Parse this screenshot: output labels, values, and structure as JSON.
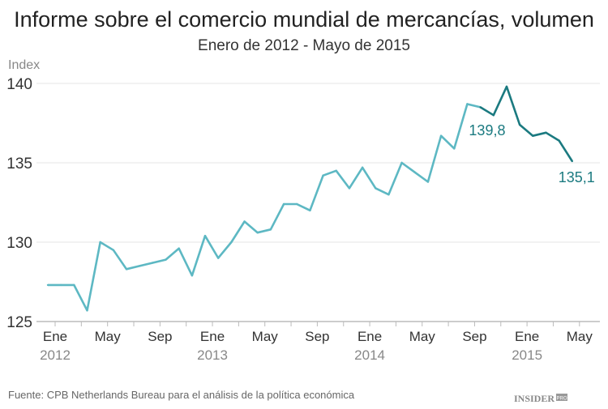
{
  "chart_data": {
    "type": "line",
    "title": "Informe sobre el comercio mundial de mercancías, volumen",
    "subtitle": "Enero de 2012 - Mayo de 2015",
    "ylabel": "Index",
    "xlabel": "",
    "ylim": [
      125,
      140
    ],
    "yticks": [
      "125",
      "130",
      "135",
      "140"
    ],
    "ytick_values": [
      125,
      130,
      135,
      140
    ],
    "grid": true,
    "xtick_labels": [
      {
        "month": 0,
        "label": "Ene",
        "year": "2012"
      },
      {
        "month": 4,
        "label": "May",
        "year": ""
      },
      {
        "month": 8,
        "label": "Sep",
        "year": ""
      },
      {
        "month": 12,
        "label": "Ene",
        "year": "2013"
      },
      {
        "month": 16,
        "label": "May",
        "year": ""
      },
      {
        "month": 20,
        "label": "Sep",
        "year": ""
      },
      {
        "month": 24,
        "label": "Ene",
        "year": "2014"
      },
      {
        "month": 28,
        "label": "May",
        "year": ""
      },
      {
        "month": 32,
        "label": "Sep",
        "year": ""
      },
      {
        "month": 36,
        "label": "Ene",
        "year": "2015"
      },
      {
        "month": 40,
        "label": "May",
        "year": ""
      }
    ],
    "x": [
      "2012-01",
      "2012-02",
      "2012-03",
      "2012-04",
      "2012-05",
      "2012-06",
      "2012-07",
      "2012-08",
      "2012-09",
      "2012-10",
      "2012-11",
      "2012-12",
      "2013-01",
      "2013-02",
      "2013-03",
      "2013-04",
      "2013-05",
      "2013-06",
      "2013-07",
      "2013-08",
      "2013-09",
      "2013-10",
      "2013-11",
      "2013-12",
      "2014-01",
      "2014-02",
      "2014-03",
      "2014-04",
      "2014-05",
      "2014-06",
      "2014-07",
      "2014-08",
      "2014-09",
      "2014-10",
      "2014-11",
      "2014-12",
      "2015-01",
      "2015-02",
      "2015-03",
      "2015-04",
      "2015-05"
    ],
    "values": [
      127.3,
      127.3,
      127.3,
      125.7,
      130.0,
      129.5,
      128.3,
      128.5,
      128.7,
      128.9,
      129.6,
      127.9,
      130.4,
      129.0,
      130.0,
      131.3,
      130.6,
      130.8,
      132.4,
      132.4,
      132.0,
      134.2,
      134.5,
      133.4,
      134.7,
      133.4,
      133.0,
      135.0,
      134.4,
      133.8,
      136.7,
      135.9,
      138.7,
      138.5,
      138.0,
      139.8,
      137.4,
      136.7,
      136.9,
      136.4,
      135.1
    ],
    "highlight_from": "2014-10",
    "annotations": [
      {
        "x": "2014-12",
        "label": "139,8"
      },
      {
        "x": "2015-05",
        "label": "135,1"
      }
    ],
    "colors": {
      "line": "#5db8c3",
      "highlight": "#1b7a80",
      "annotation": "#1b7a80",
      "grid": "#e6e6e6",
      "axis": "#bbbbbb"
    }
  },
  "footer": {
    "source": "Fuente: CPB Netherlands Bureau para el análisis de la política económica",
    "logo": "INSIDER PRO"
  }
}
